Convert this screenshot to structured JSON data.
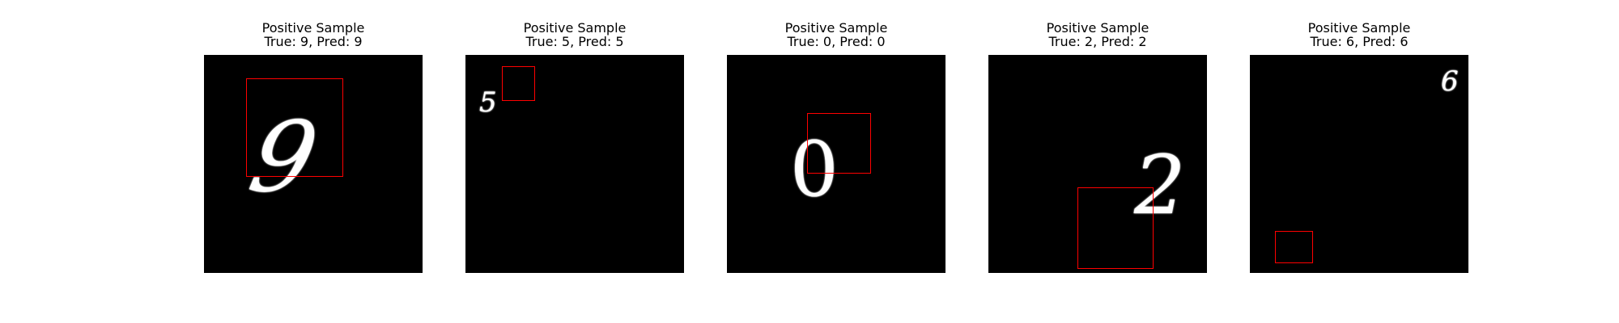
{
  "panels": [
    {
      "title": "Positive Sample",
      "subtitle": "True: 9, Pred: 9",
      "digit": "9"
    },
    {
      "title": "Positive Sample",
      "subtitle": "True: 5, Pred: 5",
      "digit": "5"
    },
    {
      "title": "Positive Sample",
      "subtitle": "True: 0, Pred: 0",
      "digit": "0"
    },
    {
      "title": "Positive Sample",
      "subtitle": "True: 2, Pred: 2",
      "digit": "2"
    },
    {
      "title": "Positive Sample",
      "subtitle": "True: 6, Pred: 6",
      "digit": "6"
    }
  ],
  "colors": {
    "background": "#000000",
    "digit": "#ffffff",
    "box": "#ff0000"
  }
}
